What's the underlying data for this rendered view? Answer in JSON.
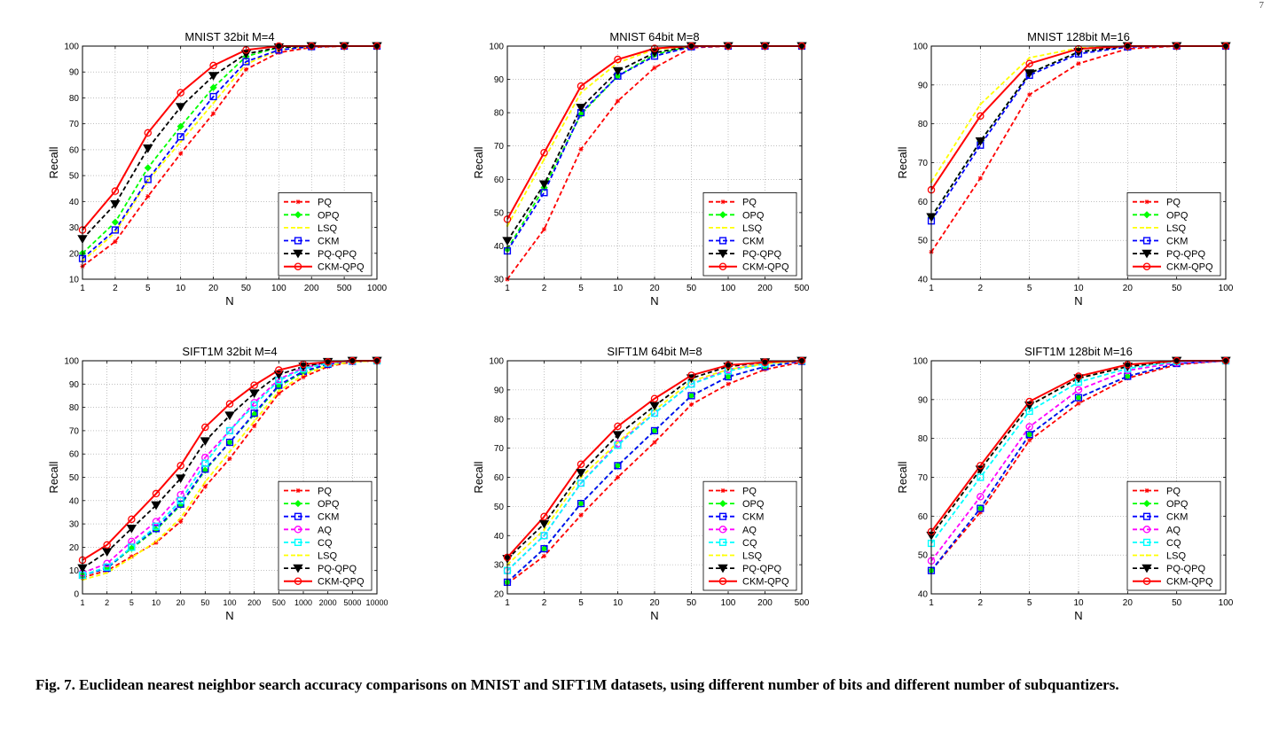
{
  "page_number": "7",
  "caption": "Fig. 7. Euclidean nearest neighbor search accuracy comparisons on MNIST and SIFT1M datasets, using different number of bits and different number of subquantizers.",
  "colors": {
    "PQ": "#ff0000",
    "OPQ": "#00ff00",
    "LSQ": "#ffff00",
    "CKM": "#0000ff",
    "AQ": "#ff00ff",
    "CQ": "#00ffff",
    "PQ-QPQ": "#000000",
    "CKM-QPQ": "#ff0000"
  },
  "chart_data": [
    {
      "type": "line",
      "title": "MNIST 32bit M=4",
      "xlabel": "N",
      "ylabel": "Recall",
      "categories": [
        "1",
        "2",
        "5",
        "10",
        "20",
        "50",
        "100",
        "200",
        "500",
        "1000"
      ],
      "yticks": [
        10,
        20,
        30,
        40,
        50,
        60,
        70,
        80,
        90,
        100
      ],
      "ylim": [
        10,
        100
      ],
      "grid": true,
      "legend": "bottom-right",
      "series": [
        {
          "name": "PQ",
          "values": [
            15,
            24.5,
            42,
            58.5,
            74,
            91,
            97.5,
            99.5,
            100,
            100
          ]
        },
        {
          "name": "OPQ",
          "values": [
            20,
            32,
            53,
            69,
            84,
            96,
            99.5,
            100,
            100,
            100
          ]
        },
        {
          "name": "LSQ",
          "values": [
            17,
            28,
            48,
            63,
            78,
            93,
            98.5,
            99.8,
            100,
            100
          ]
        },
        {
          "name": "CKM",
          "values": [
            18,
            29,
            48.5,
            65,
            80.5,
            94,
            98.5,
            99.8,
            100,
            100
          ]
        },
        {
          "name": "PQ-QPQ",
          "values": [
            25.5,
            39,
            60.5,
            76.5,
            88.5,
            97,
            99.5,
            100,
            100,
            100
          ]
        },
        {
          "name": "CKM-QPQ",
          "values": [
            29,
            44,
            66.5,
            82,
            92.5,
            98.5,
            100,
            100,
            100,
            100
          ]
        }
      ]
    },
    {
      "type": "line",
      "title": "MNIST 64bit M=8",
      "xlabel": "N",
      "ylabel": "Recall",
      "categories": [
        "1",
        "2",
        "5",
        "10",
        "20",
        "50",
        "100",
        "200",
        "500"
      ],
      "yticks": [
        30,
        40,
        50,
        60,
        70,
        80,
        90,
        100
      ],
      "ylim": [
        30,
        100
      ],
      "grid": true,
      "legend": "bottom-right",
      "series": [
        {
          "name": "PQ",
          "values": [
            30,
            45,
            69,
            83.5,
            93.5,
            99.5,
            100,
            100,
            100
          ]
        },
        {
          "name": "OPQ",
          "values": [
            39,
            57.5,
            79.5,
            91,
            97.5,
            100,
            100,
            100,
            100
          ]
        },
        {
          "name": "LSQ",
          "values": [
            46,
            66,
            86,
            95,
            99,
            100,
            100,
            100,
            100
          ]
        },
        {
          "name": "CKM",
          "values": [
            38.5,
            56,
            80,
            91,
            97,
            99.8,
            100,
            100,
            100
          ]
        },
        {
          "name": "PQ-QPQ",
          "values": [
            41.5,
            58.5,
            81.5,
            92.5,
            98,
            100,
            100,
            100,
            100
          ]
        },
        {
          "name": "CKM-QPQ",
          "values": [
            48,
            68,
            88,
            96,
            99.3,
            100,
            100,
            100,
            100
          ]
        }
      ]
    },
    {
      "type": "line",
      "title": "MNIST 128bit M=16",
      "xlabel": "N",
      "ylabel": "Recall",
      "categories": [
        "1",
        "2",
        "5",
        "10",
        "20",
        "50",
        "100"
      ],
      "yticks": [
        40,
        50,
        60,
        70,
        80,
        90,
        100
      ],
      "ylim": [
        40,
        100
      ],
      "grid": true,
      "legend": "bottom-right",
      "series": [
        {
          "name": "PQ",
          "values": [
            47,
            66,
            87.5,
            95.5,
            99.3,
            100,
            100
          ]
        },
        {
          "name": "OPQ",
          "values": [
            56,
            75.5,
            93,
            98.5,
            100,
            100,
            100
          ]
        },
        {
          "name": "LSQ",
          "values": [
            65,
            85,
            97,
            99.5,
            100,
            100,
            100
          ]
        },
        {
          "name": "CKM",
          "values": [
            55,
            74.5,
            92.5,
            98,
            99.8,
            100,
            100
          ]
        },
        {
          "name": "PQ-QPQ",
          "values": [
            56,
            75.5,
            93,
            98.5,
            100,
            100,
            100
          ]
        },
        {
          "name": "CKM-QPQ",
          "values": [
            63,
            82,
            95.5,
            99.3,
            100,
            100,
            100
          ]
        }
      ]
    },
    {
      "type": "line",
      "title": "SIFT1M 32bit M=4",
      "xlabel": "N",
      "ylabel": "Recall",
      "categories": [
        "1",
        "2",
        "5",
        "10",
        "20",
        "50",
        "100",
        "200",
        "500",
        "1000",
        "2000",
        "5000",
        "10000"
      ],
      "yticks": [
        0,
        10,
        20,
        30,
        40,
        50,
        60,
        70,
        80,
        90,
        100
      ],
      "ylim": [
        0,
        100
      ],
      "grid": true,
      "legend": "bottom-right",
      "series": [
        {
          "name": "PQ",
          "values": [
            7,
            10,
            16,
            22,
            31,
            46,
            58,
            72,
            86,
            93,
            97.5,
            99.5,
            100
          ]
        },
        {
          "name": "OPQ",
          "values": [
            8,
            11,
            19.5,
            27.5,
            38,
            53,
            65,
            77,
            89,
            95,
            98.5,
            99.8,
            100
          ]
        },
        {
          "name": "CKM",
          "values": [
            8,
            11,
            20,
            28,
            38.5,
            53.5,
            65,
            77.5,
            89.5,
            95.5,
            98.5,
            99.8,
            100
          ]
        },
        {
          "name": "AQ",
          "values": [
            9,
            13,
            22.5,
            31,
            42.5,
            58.5,
            70,
            82,
            92,
            97,
            99,
            100,
            100
          ]
        },
        {
          "name": "CQ",
          "values": [
            8,
            11.5,
            20,
            29,
            40,
            56,
            70,
            81,
            91.5,
            96.5,
            99,
            100,
            100
          ]
        },
        {
          "name": "LSQ",
          "values": [
            6,
            9,
            15.5,
            22.5,
            32.5,
            48,
            61,
            74,
            87,
            94,
            98,
            99.5,
            100
          ]
        },
        {
          "name": "PQ-QPQ",
          "values": [
            11,
            18,
            28,
            38,
            49.5,
            65.5,
            76.5,
            86,
            94,
            97.5,
            99.5,
            100,
            100
          ]
        },
        {
          "name": "CKM-QPQ",
          "values": [
            14.5,
            21,
            32,
            43,
            55,
            71.5,
            81.5,
            89.5,
            96,
            98.5,
            99.5,
            100,
            100
          ]
        }
      ]
    },
    {
      "type": "line",
      "title": "SIFT1M 64bit M=8",
      "xlabel": "N",
      "ylabel": "Recall",
      "categories": [
        "1",
        "2",
        "5",
        "10",
        "20",
        "50",
        "100",
        "200",
        "500"
      ],
      "yticks": [
        20,
        30,
        40,
        50,
        60,
        70,
        80,
        90,
        100
      ],
      "ylim": [
        20,
        100
      ],
      "grid": true,
      "legend": "bottom-right",
      "series": [
        {
          "name": "PQ",
          "values": [
            23.5,
            33,
            47,
            60,
            72,
            85,
            92,
            97,
            99.5
          ]
        },
        {
          "name": "OPQ",
          "values": [
            24,
            35.5,
            51,
            64,
            76,
            88,
            94.5,
            98,
            100
          ]
        },
        {
          "name": "CKM",
          "values": [
            24,
            35.5,
            51,
            64,
            76,
            88,
            94.5,
            98,
            99.8
          ]
        },
        {
          "name": "AQ",
          "values": [
            28,
            40,
            58,
            71.5,
            82,
            92,
            97,
            99,
            100
          ]
        },
        {
          "name": "CQ",
          "values": [
            28,
            40,
            58,
            71,
            82,
            92,
            96.5,
            99,
            100
          ]
        },
        {
          "name": "LSQ",
          "values": [
            30,
            42,
            60,
            72,
            83,
            93,
            97,
            99,
            100
          ]
        },
        {
          "name": "PQ-QPQ",
          "values": [
            32,
            44,
            61.5,
            74.5,
            84.5,
            94,
            98,
            99.5,
            100
          ]
        },
        {
          "name": "CKM-QPQ",
          "values": [
            32.5,
            46.5,
            64.5,
            77.5,
            87,
            95,
            98.5,
            99.5,
            100
          ]
        }
      ]
    },
    {
      "type": "line",
      "title": "SIFT1M 128bit M=16",
      "xlabel": "N",
      "ylabel": "Recall",
      "categories": [
        "1",
        "2",
        "5",
        "10",
        "20",
        "50",
        "100"
      ],
      "yticks": [
        40,
        50,
        60,
        70,
        80,
        90,
        100
      ],
      "ylim": [
        40,
        100
      ],
      "grid": true,
      "legend": "bottom-right",
      "series": [
        {
          "name": "PQ",
          "values": [
            46,
            61,
            79.5,
            89,
            95.5,
            99,
            100
          ]
        },
        {
          "name": "OPQ",
          "values": [
            46,
            62,
            81,
            90.5,
            96,
            99.3,
            100
          ]
        },
        {
          "name": "CKM",
          "values": [
            46,
            62,
            81,
            90.5,
            96,
            99.3,
            100
          ]
        },
        {
          "name": "AQ",
          "values": [
            48.5,
            65,
            83,
            92.5,
            97.5,
            99.5,
            100
          ]
        },
        {
          "name": "CQ",
          "values": [
            53,
            70,
            87,
            94.5,
            98,
            99.8,
            100
          ]
        },
        {
          "name": "LSQ",
          "values": [
            55,
            72,
            88.5,
            95.5,
            98.5,
            100,
            100
          ]
        },
        {
          "name": "PQ-QPQ",
          "values": [
            55,
            72,
            88.5,
            95.5,
            98.5,
            100,
            100
          ]
        },
        {
          "name": "CKM-QPQ",
          "values": [
            56,
            73,
            89.5,
            96,
            99,
            100,
            100
          ]
        }
      ]
    }
  ]
}
